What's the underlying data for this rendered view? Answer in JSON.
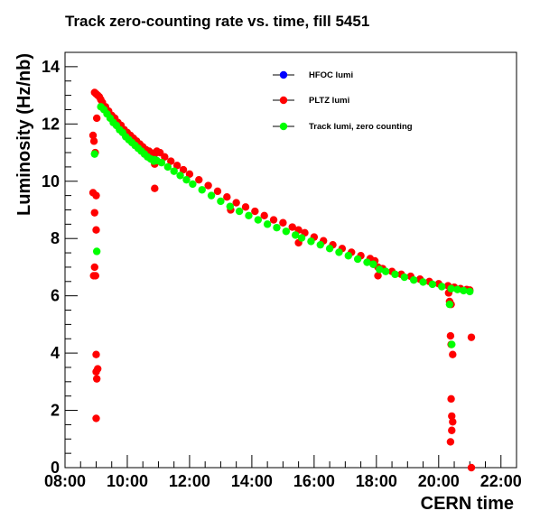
{
  "chart_data": {
    "type": "scatter",
    "title": "Track zero-counting rate vs. time, fill 5451",
    "xlabel": "CERN time",
    "ylabel": "Luminosity (Hz/nb)",
    "xlim": [
      8.0,
      22.5
    ],
    "ylim": [
      0,
      14.5
    ],
    "x_unit": "hours",
    "xticks": [
      8,
      10,
      12,
      14,
      16,
      18,
      20,
      22
    ],
    "xtick_labels": [
      "08:00",
      "10:00",
      "12:00",
      "14:00",
      "16:00",
      "18:00",
      "20:00",
      "22:00"
    ],
    "yticks": [
      0,
      2,
      4,
      6,
      8,
      10,
      12,
      14
    ],
    "ytick_labels": [
      "0",
      "2",
      "4",
      "6",
      "8",
      "10",
      "12",
      "14"
    ],
    "grid": false,
    "legend_position": "top-right",
    "series": [
      {
        "name": "HFOC lumi",
        "color": "#0000ff",
        "x": [],
        "y": []
      },
      {
        "name": "PLTZ lumi",
        "color": "#ff0000",
        "x": [
          8.95,
          9.0,
          9.05,
          9.1,
          9.15,
          9.2,
          9.3,
          9.4,
          9.5,
          9.6,
          9.7,
          9.8,
          9.9,
          10.0,
          10.1,
          10.2,
          10.3,
          10.4,
          10.5,
          10.6,
          10.7,
          10.8,
          10.88,
          10.95,
          11.05,
          11.2,
          11.4,
          11.6,
          11.8,
          12.0,
          12.3,
          12.6,
          12.9,
          13.2,
          13.5,
          13.8,
          14.1,
          14.4,
          14.7,
          15.0,
          15.3,
          15.5,
          15.7,
          16.0,
          16.3,
          16.6,
          16.9,
          17.2,
          17.5,
          17.8,
          17.95,
          18.05,
          18.2,
          18.5,
          18.8,
          19.1,
          19.4,
          19.7,
          20.0,
          20.3,
          20.5,
          20.7,
          20.9,
          21.0,
          8.9,
          8.93,
          8.97,
          8.9,
          8.95,
          9.0,
          9.0,
          8.95,
          8.98,
          8.92,
          9.02,
          9.0,
          9.05,
          9.0,
          9.02,
          9.0,
          10.88,
          10.88,
          13.32,
          15.5,
          18.05,
          20.32,
          20.35,
          20.38,
          20.4,
          20.42,
          20.45,
          20.42,
          20.38,
          20.4,
          20.45,
          20.4,
          21.05,
          21.05
        ],
        "y": [
          13.1,
          13.05,
          13.0,
          12.95,
          12.85,
          12.75,
          12.6,
          12.45,
          12.3,
          12.2,
          12.05,
          11.95,
          11.8,
          11.7,
          11.6,
          11.5,
          11.4,
          11.3,
          11.2,
          11.1,
          11.05,
          10.98,
          10.95,
          11.05,
          11.0,
          10.85,
          10.7,
          10.55,
          10.4,
          10.25,
          10.05,
          9.85,
          9.65,
          9.45,
          9.25,
          9.1,
          8.95,
          8.8,
          8.65,
          8.55,
          8.4,
          8.3,
          8.2,
          8.05,
          7.92,
          7.78,
          7.65,
          7.52,
          7.4,
          7.3,
          7.22,
          7.0,
          6.95,
          6.85,
          6.75,
          6.68,
          6.58,
          6.5,
          6.42,
          6.35,
          6.3,
          6.25,
          6.22,
          6.2,
          11.6,
          11.4,
          11.0,
          9.6,
          8.9,
          9.5,
          8.3,
          7.0,
          6.7,
          6.7,
          12.2,
          3.95,
          3.45,
          3.35,
          3.1,
          1.72,
          10.6,
          9.75,
          9.0,
          7.85,
          6.7,
          6.1,
          5.8,
          4.6,
          2.4,
          1.8,
          1.6,
          1.3,
          0.9,
          4.3,
          3.95,
          5.7,
          4.55,
          0.0
        ]
      },
      {
        "name": "Track lumi, zero counting",
        "color": "#00ff00",
        "x": [
          9.15,
          9.25,
          9.35,
          9.45,
          9.55,
          9.65,
          9.75,
          9.85,
          9.95,
          10.05,
          10.15,
          10.25,
          10.35,
          10.45,
          10.55,
          10.65,
          10.75,
          10.85,
          10.95,
          11.1,
          11.3,
          11.5,
          11.7,
          11.9,
          12.1,
          12.4,
          12.7,
          13.0,
          13.3,
          13.6,
          13.9,
          14.2,
          14.5,
          14.8,
          15.1,
          15.4,
          15.6,
          15.9,
          16.2,
          16.5,
          16.8,
          17.1,
          17.4,
          17.7,
          17.9,
          18.1,
          18.3,
          18.6,
          18.9,
          19.2,
          19.5,
          19.8,
          20.1,
          20.4,
          20.6,
          20.8,
          21.0,
          8.95,
          9.02,
          10.88,
          20.35,
          20.42
        ],
        "y": [
          12.6,
          12.5,
          12.35,
          12.2,
          12.05,
          11.95,
          11.8,
          11.7,
          11.55,
          11.45,
          11.35,
          11.25,
          11.15,
          11.05,
          10.95,
          10.85,
          10.78,
          10.7,
          10.72,
          10.65,
          10.5,
          10.35,
          10.2,
          10.05,
          9.9,
          9.7,
          9.5,
          9.3,
          9.12,
          8.95,
          8.8,
          8.65,
          8.5,
          8.38,
          8.25,
          8.12,
          8.02,
          7.9,
          7.78,
          7.65,
          7.52,
          7.4,
          7.28,
          7.17,
          7.1,
          6.92,
          6.85,
          6.75,
          6.65,
          6.55,
          6.48,
          6.4,
          6.32,
          6.25,
          6.22,
          6.18,
          6.15,
          10.95,
          7.55,
          10.75,
          5.7,
          4.3
        ]
      }
    ]
  }
}
